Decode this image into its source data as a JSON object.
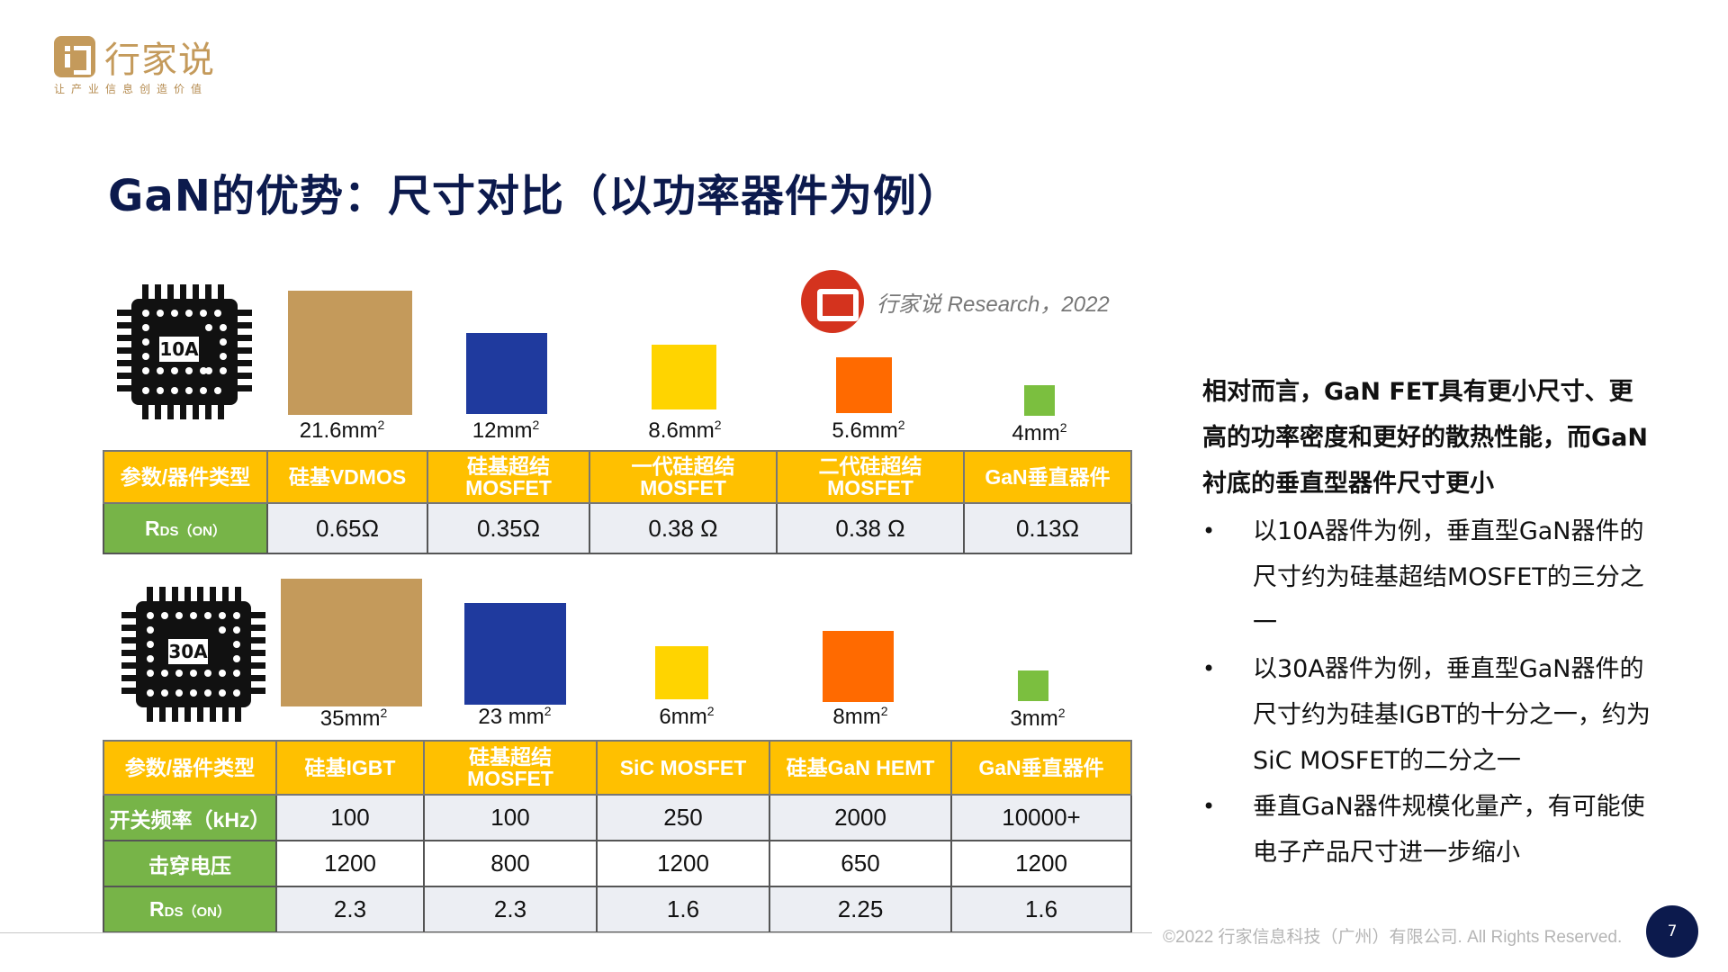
{
  "brand": {
    "name": "行家说",
    "slogan": "让产业信息创造价值",
    "accent": "#c49a5b"
  },
  "title": "GaN的优势：尺寸对比（以功率器件为例）",
  "source": {
    "brand": "行家说",
    "note": "Research，2022"
  },
  "chip_10a": {
    "label": "10A"
  },
  "chip_30a": {
    "label": "30A"
  },
  "table10": {
    "areas": [
      {
        "value": "21.6mm",
        "sup": "2"
      },
      {
        "value": "12mm",
        "sup": "2"
      },
      {
        "value": "8.6mm",
        "sup": "2"
      },
      {
        "value": "5.6mm",
        "sup": "2"
      },
      {
        "value": "4mm",
        "sup": "2"
      }
    ],
    "header": [
      "参数/器件类型",
      "硅基VDMOS",
      "硅基超结 MOSFET",
      "一代硅超结 MOSFET",
      "二代硅超结 MOSFET",
      "GaN垂直器件"
    ],
    "rds_label": "R",
    "rds_sub": "DS（ON）",
    "rds_values": [
      "0.65Ω",
      "0.35Ω",
      "0.38 Ω",
      "0.38 Ω",
      "0.13Ω"
    ]
  },
  "table30": {
    "areas": [
      {
        "value": "35mm",
        "sup": "2"
      },
      {
        "value": "23 mm",
        "sup": "2"
      },
      {
        "value": "6mm",
        "sup": "2"
      },
      {
        "value": "8mm",
        "sup": "2"
      },
      {
        "value": "3mm",
        "sup": "2"
      }
    ],
    "header": [
      "参数/器件类型",
      "硅基IGBT",
      "硅基超结 MOSFET",
      "SiC MOSFET",
      "硅基GaN HEMT",
      "GaN垂直器件"
    ],
    "rows": [
      {
        "label": "开关频率（kHz）",
        "values": [
          "100",
          "100",
          "250",
          "2000",
          "10000+"
        ]
      },
      {
        "label": "击穿电压",
        "values": [
          "1200",
          "800",
          "1200",
          "650",
          "1200"
        ]
      },
      {
        "label": "R",
        "sub": "DS（ON）",
        "values": [
          "2.3",
          "2.3",
          "1.6",
          "2.25",
          "1.6"
        ]
      }
    ]
  },
  "side": {
    "lead": "相对而言，GaN FET具有更小尺寸、更高的功率密度和更好的散热性能，而GaN衬底的垂直型器件尺寸更小",
    "bullets": [
      "以10A器件为例，垂直型GaN器件的尺寸约为硅基超结MOSFET的三分之一",
      "以30A器件为例，垂直型GaN器件的尺寸约为硅基IGBT的十分之一，约为SiC MOSFET的二分之一",
      "垂直GaN器件规模化量产，有可能使电子产品尺寸进一步缩小"
    ]
  },
  "colors": {
    "title": "#0c1a4d",
    "header_bg": "#ffc000",
    "rowhead_bg": "#77b448",
    "sq_vdmos": "#c49a5b",
    "sq_sj": "#1f3a9e",
    "sq_yellow": "#ffd400",
    "sq_orange": "#ff6a00",
    "sq_green": "#7bbf3f"
  },
  "footer": {
    "copyright": "©2022 行家信息科技（广州）有限公司. All Rights Reserved.",
    "page": "7"
  }
}
